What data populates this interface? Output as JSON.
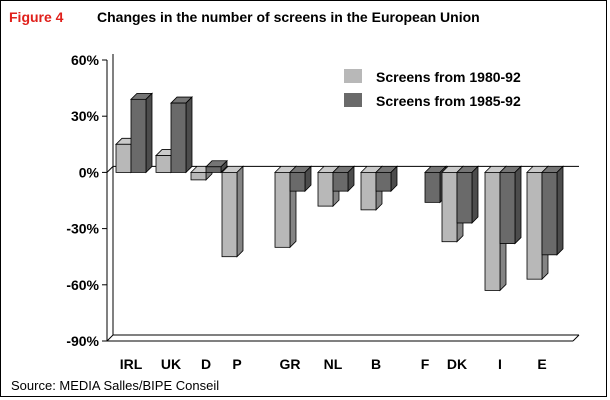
{
  "figure_label": "Figure 4",
  "title": "Changes in the number of screens in the European Union",
  "source": "Source: MEDIA Salles/BIPE Conseil",
  "chart_data": {
    "type": "bar",
    "style": "3d-clustered-bar",
    "categories": [
      "IRL",
      "UK",
      "D",
      "P",
      "GR",
      "NL",
      "B",
      "F",
      "DK",
      "I",
      "E"
    ],
    "series": [
      {
        "name": "Screens from 1980-92",
        "color": "#b8b8b8",
        "values": [
          15,
          9,
          -4,
          -45,
          -40,
          -18,
          -20,
          null,
          -37,
          -63,
          -57
        ]
      },
      {
        "name": "Screens from 1985-92",
        "color": "#6a6a6a",
        "values": [
          39,
          37,
          3,
          null,
          -10,
          -10,
          -10,
          -16,
          -27,
          -38,
          -44
        ]
      }
    ],
    "ylim": [
      -90,
      60
    ],
    "yticks": [
      -90,
      -60,
      -30,
      0,
      30,
      60
    ],
    "ytick_labels": [
      "-90%",
      "-60%",
      "-30%",
      "0%",
      "30%",
      "60%"
    ],
    "xlabel": "",
    "ylabel": "",
    "legend_position": "top-right",
    "grid": false
  }
}
